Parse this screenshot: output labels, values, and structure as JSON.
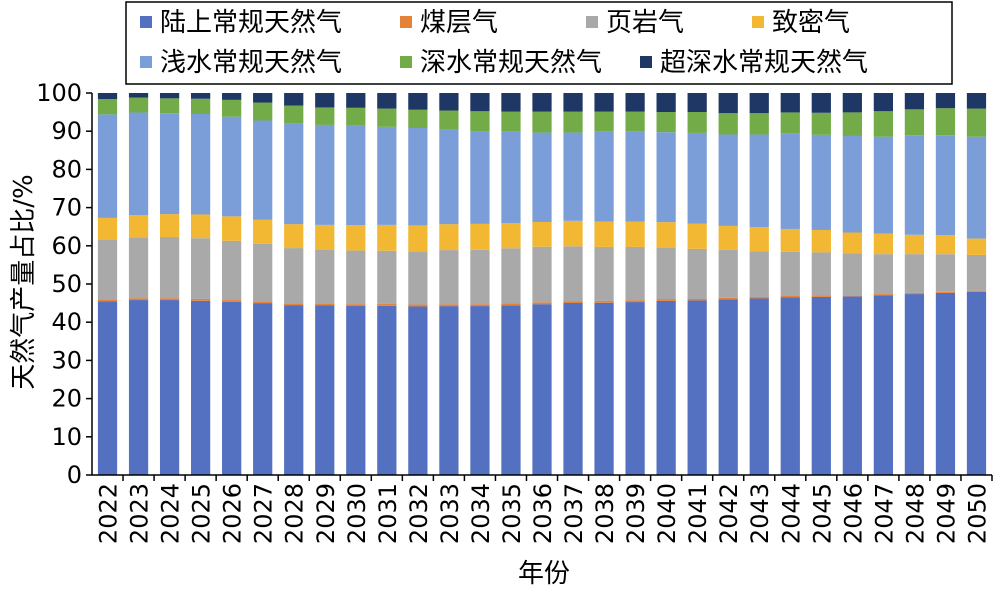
{
  "chart_data": {
    "type": "bar",
    "stacked": true,
    "title": "",
    "xlabel": "年份",
    "ylabel": "天然气产量占比/%",
    "ylim": [
      0,
      100
    ],
    "yticks": [
      0,
      10,
      20,
      30,
      40,
      50,
      60,
      70,
      80,
      90,
      100
    ],
    "grid": false,
    "legend_position": "top",
    "categories": [
      "2022",
      "2023",
      "2024",
      "2025",
      "2026",
      "2027",
      "2028",
      "2029",
      "2030",
      "2031",
      "2032",
      "2033",
      "2034",
      "2035",
      "2036",
      "2037",
      "2038",
      "2039",
      "2040",
      "2041",
      "2042",
      "2043",
      "2044",
      "2045",
      "2046",
      "2047",
      "2048",
      "2049",
      "2050"
    ],
    "series": [
      {
        "name": "陆上常规天然气",
        "color": "#5470c0",
        "values": [
          45.5,
          45.8,
          45.8,
          45.6,
          45.3,
          45.0,
          44.7,
          44.6,
          44.5,
          44.5,
          44.3,
          44.3,
          44.4,
          44.6,
          44.9,
          45.2,
          45.3,
          45.5,
          45.7,
          45.9,
          46.1,
          46.3,
          46.6,
          46.8,
          47.0,
          47.3,
          47.6,
          47.9,
          48.2
        ]
      },
      {
        "name": "煤层气",
        "color": "#e5823a",
        "values": [
          0.5,
          0.5,
          0.5,
          0.5,
          0.5,
          0.5,
          0.5,
          0.5,
          0.5,
          0.5,
          0.5,
          0.5,
          0.5,
          0.5,
          0.5,
          0.5,
          0.5,
          0.5,
          0.5,
          0.4,
          0.4,
          0.4,
          0.4,
          0.4,
          0.3,
          0.3,
          0.3,
          0.3,
          0.3
        ]
      },
      {
        "name": "页岩气",
        "color": "#a9a9a9",
        "values": [
          15.7,
          15.9,
          16.0,
          15.9,
          15.5,
          15.0,
          14.5,
          14.2,
          14.1,
          14.0,
          14.0,
          14.2,
          14.3,
          14.5,
          14.6,
          14.4,
          14.2,
          14.0,
          13.5,
          13.2,
          12.6,
          12.0,
          11.6,
          11.3,
          11.0,
          10.5,
          10.2,
          9.9,
          9.4
        ]
      },
      {
        "name": "致密气",
        "color": "#f2b733",
        "values": [
          5.6,
          5.8,
          6.0,
          6.2,
          6.4,
          6.3,
          6.3,
          6.5,
          6.7,
          6.8,
          6.8,
          6.8,
          6.8,
          6.6,
          6.5,
          6.7,
          6.7,
          6.7,
          6.7,
          6.6,
          6.3,
          6.3,
          6.0,
          5.9,
          5.5,
          5.4,
          5.1,
          5.0,
          4.3
        ]
      },
      {
        "name": "浅水常规天然气",
        "color": "#7b9ed8",
        "values": [
          27.1,
          26.9,
          26.4,
          26.3,
          26.1,
          26.0,
          26.5,
          26.3,
          26.2,
          25.8,
          25.6,
          24.8,
          24.4,
          24.1,
          23.5,
          23.2,
          23.6,
          23.6,
          23.6,
          23.9,
          24.0,
          24.3,
          25.0,
          25.0,
          25.4,
          25.5,
          26.2,
          26.3,
          26.8
        ]
      },
      {
        "name": "深水常规天然气",
        "color": "#72ab48",
        "values": [
          4.0,
          3.9,
          3.9,
          4.0,
          4.4,
          4.7,
          4.7,
          4.6,
          4.7,
          4.8,
          4.8,
          5.0,
          5.2,
          5.2,
          5.5,
          5.5,
          5.3,
          5.3,
          5.3,
          5.5,
          5.6,
          5.6,
          5.6,
          5.8,
          6.2,
          6.7,
          6.8,
          7.1,
          7.4
        ]
      },
      {
        "name": "超深水常规天然气",
        "color": "#1f3764",
        "values": [
          1.6,
          1.2,
          1.4,
          1.5,
          1.8,
          2.5,
          3.3,
          3.8,
          3.9,
          4.1,
          4.4,
          4.6,
          4.8,
          4.9,
          4.9,
          4.9,
          4.9,
          4.9,
          5.0,
          5.0,
          5.3,
          5.3,
          5.1,
          5.2,
          5.1,
          4.8,
          4.3,
          4.0,
          4.1
        ]
      }
    ]
  }
}
